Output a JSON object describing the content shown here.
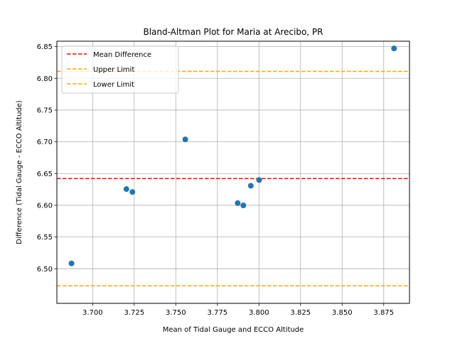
{
  "chart_data": {
    "type": "scatter",
    "title": "Bland-Altman Plot for Maria at Arecibo, PR",
    "xlabel": "Mean of Tidal Gauge and ECCO Altitude",
    "ylabel": "Difference (Tidal Gauge - ECCO Altitude)",
    "xlim": [
      3.6785,
      3.8905
    ],
    "ylim": [
      6.4455,
      6.8585
    ],
    "xticks": [
      3.7,
      3.725,
      3.75,
      3.775,
      3.8,
      3.825,
      3.85,
      3.875
    ],
    "xtick_labels": [
      "3.700",
      "3.725",
      "3.750",
      "3.775",
      "3.800",
      "3.825",
      "3.850",
      "3.875"
    ],
    "yticks": [
      6.5,
      6.55,
      6.6,
      6.65,
      6.7,
      6.75,
      6.8,
      6.85
    ],
    "ytick_labels": [
      "6.50",
      "6.55",
      "6.60",
      "6.65",
      "6.70",
      "6.75",
      "6.80",
      "6.85"
    ],
    "grid": true,
    "legend_position": "top-left",
    "points": {
      "color": "#1f77b4",
      "x": [
        3.6873,
        3.7203,
        3.7239,
        3.7557,
        3.7872,
        3.7906,
        3.7951,
        3.8001,
        3.8812
      ],
      "y": [
        6.5084,
        6.6255,
        6.621,
        6.7038,
        6.6034,
        6.5998,
        6.6308,
        6.6398,
        6.8471
      ]
    },
    "reference_lines": [
      {
        "name": "Mean Difference",
        "y": 6.642,
        "color": "#ff0000"
      },
      {
        "name": "Upper Limit",
        "y": 6.811,
        "color": "#ffa500"
      },
      {
        "name": "Lower Limit",
        "y": 6.473,
        "color": "#ffa500"
      }
    ]
  }
}
